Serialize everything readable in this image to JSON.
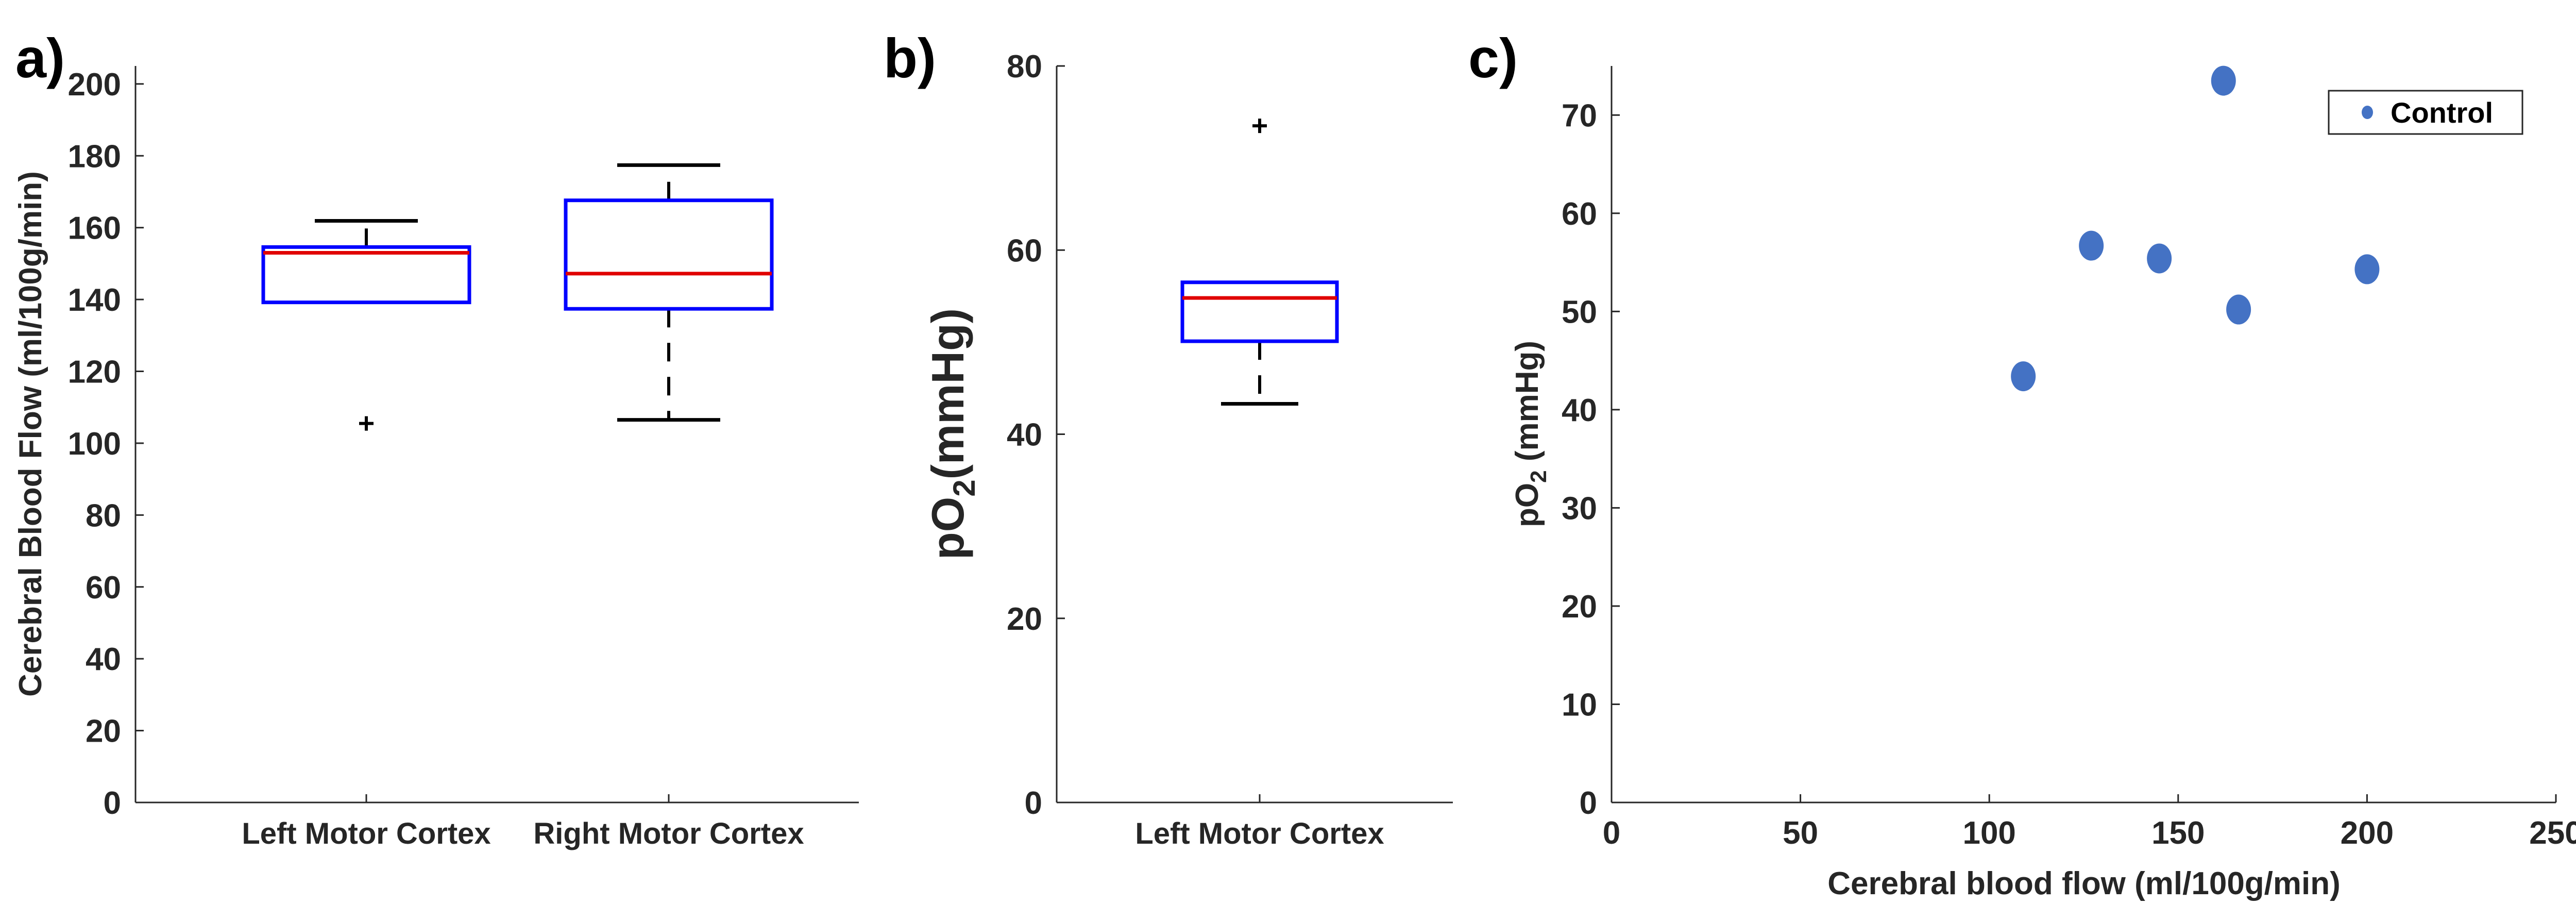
{
  "chart_data": [
    {
      "type": "box",
      "panel_label": "a)",
      "title": "",
      "xlabel": "",
      "ylabel": "Cerebral Blood Flow (ml/100g/min)",
      "ylim": [
        0,
        205
      ],
      "yticks": [
        0,
        20,
        40,
        60,
        80,
        100,
        120,
        140,
        160,
        180,
        200
      ],
      "categories": [
        "Left Motor Cortex",
        "Right Motor Cortex"
      ],
      "boxes": [
        {
          "whisker_low": 139.2,
          "q1": 139.2,
          "median": 153.0,
          "q3": 154.6,
          "whisker_high": 161.9,
          "outliers": [
            105.5
          ]
        },
        {
          "whisker_low": 106.5,
          "q1": 137.4,
          "median": 147.2,
          "q3": 167.6,
          "whisker_high": 177.4,
          "outliers": []
        }
      ],
      "colors": {
        "box": "#0000ff",
        "median": "#e00000",
        "whisker": "#000000"
      }
    },
    {
      "type": "box",
      "panel_label": "b)",
      "title": "",
      "xlabel": "",
      "ylabel_main": "pO",
      "ylabel_sub": "2",
      "ylabel_unit": "(mmHg)",
      "ylim": [
        0,
        80
      ],
      "yticks": [
        0,
        20,
        40,
        60,
        80
      ],
      "categories": [
        "Left Motor Cortex"
      ],
      "boxes": [
        {
          "whisker_low": 43.3,
          "q1": 50.1,
          "median": 54.8,
          "q3": 56.5,
          "whisker_high": 56.5,
          "outliers": [
            73.5
          ]
        }
      ],
      "colors": {
        "box": "#0000ff",
        "median": "#e00000",
        "whisker": "#000000"
      }
    },
    {
      "type": "scatter",
      "panel_label": "c)",
      "title": "",
      "xlabel": "Cerebral blood flow (ml/100g/min)",
      "ylabel_main": "pO",
      "ylabel_sub": "2",
      "ylabel_unit": " (mmHg)",
      "xlim": [
        0,
        250
      ],
      "ylim": [
        0,
        75
      ],
      "xticks": [
        0,
        50,
        100,
        150,
        200,
        250
      ],
      "yticks": [
        0,
        10,
        20,
        30,
        40,
        50,
        60,
        70
      ],
      "legend": {
        "entries": [
          "Control"
        ],
        "placement": "top-right"
      },
      "series": [
        {
          "name": "Control",
          "color": "#4472c4",
          "points": [
            [
              109,
              43.4
            ],
            [
              127,
              56.7
            ],
            [
              145,
              55.4
            ],
            [
              162,
              73.5
            ],
            [
              166,
              50.2
            ],
            [
              200,
              54.3
            ]
          ]
        }
      ]
    }
  ]
}
